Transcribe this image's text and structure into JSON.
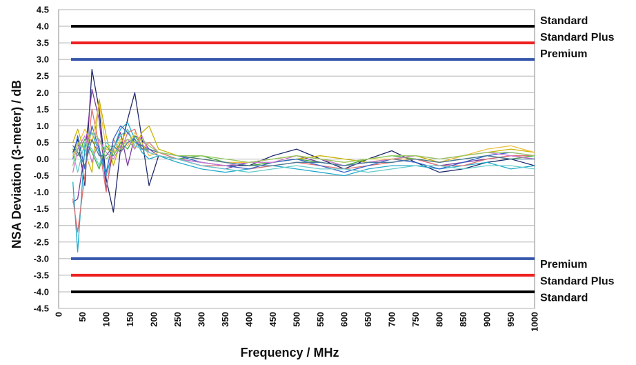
{
  "chart_data": {
    "type": "line",
    "title": "",
    "xlabel": "Frequency / MHz",
    "ylabel": "NSA Deviation (3-meter) / dB",
    "xlim": [
      0,
      1000
    ],
    "ylim": [
      -4.5,
      4.5
    ],
    "x_ticks": [
      "0",
      "50",
      "100",
      "150",
      "200",
      "250",
      "300",
      "350",
      "400",
      "450",
      "500",
      "550",
      "600",
      "650",
      "700",
      "750",
      "800",
      "850",
      "900",
      "950",
      "1000"
    ],
    "y_ticks": [
      "4.5",
      "4.0",
      "3.5",
      "3.0",
      "2.5",
      "2.0",
      "1.5",
      "1.0",
      "0.5",
      "0.0",
      "-0.5",
      "-1.0",
      "-1.5",
      "-2.0",
      "-2.5",
      "-3.0",
      "-3.5",
      "-4.0",
      "-4.5"
    ],
    "grid": true,
    "limits": [
      {
        "name": "Standard",
        "value": 4.0,
        "color": "#000000"
      },
      {
        "name": "Standard Plus",
        "value": 3.5,
        "color": "#ee2222"
      },
      {
        "name": "Premium",
        "value": 3.0,
        "color": "#3355aa"
      },
      {
        "name": "Premium",
        "value": -3.0,
        "color": "#3355aa"
      },
      {
        "name": "Standard Plus",
        "value": -3.5,
        "color": "#ee2222"
      },
      {
        "name": "Standard",
        "value": -4.0,
        "color": "#000000"
      }
    ],
    "series": [
      {
        "color": "#1f2a6b",
        "x": [
          30,
          40,
          55,
          70,
          85,
          100,
          115,
          130,
          145,
          160,
          175,
          190,
          210,
          250,
          300,
          350,
          400,
          450,
          500,
          550,
          600,
          650,
          700,
          750,
          800,
          850,
          900,
          950,
          1000
        ],
        "y": [
          0.2,
          0.6,
          -0.8,
          2.7,
          1.5,
          -0.6,
          -1.6,
          0.3,
          1.2,
          2.0,
          0.6,
          -0.8,
          0.1,
          0.0,
          -0.1,
          -0.2,
          -0.2,
          0.1,
          0.3,
          0.0,
          -0.3,
          0.0,
          0.25,
          -0.1,
          -0.4,
          -0.3,
          -0.1,
          0.0,
          -0.2
        ]
      },
      {
        "color": "#7a3aa0",
        "x": [
          30,
          40,
          55,
          70,
          85,
          100,
          115,
          130,
          145,
          160,
          175,
          190,
          210,
          250,
          300,
          350,
          400,
          450,
          500,
          550,
          600,
          650,
          700,
          750,
          800,
          850,
          900,
          950,
          1000
        ],
        "y": [
          -1.3,
          -1.2,
          0.2,
          2.1,
          1.2,
          -0.9,
          0.3,
          0.8,
          -0.2,
          0.7,
          0.6,
          0.3,
          0.1,
          0.0,
          -0.2,
          -0.3,
          -0.1,
          0.0,
          0.1,
          -0.1,
          -0.2,
          -0.1,
          0.0,
          0.0,
          -0.2,
          -0.1,
          0.0,
          0.1,
          0.0
        ]
      },
      {
        "color": "#c8b400",
        "x": [
          30,
          40,
          55,
          70,
          85,
          100,
          115,
          130,
          145,
          160,
          175,
          190,
          210,
          250,
          300,
          350,
          400,
          450,
          500,
          550,
          600,
          650,
          700,
          750,
          800,
          850,
          900,
          950,
          1000
        ],
        "y": [
          0.5,
          0.9,
          0.2,
          -0.4,
          1.8,
          0.7,
          -0.2,
          0.5,
          0.9,
          0.3,
          0.8,
          1.0,
          0.3,
          0.1,
          0.0,
          -0.1,
          -0.2,
          -0.1,
          0.0,
          0.1,
          0.0,
          -0.1,
          0.0,
          0.1,
          -0.1,
          0.1,
          0.2,
          0.3,
          0.2
        ]
      },
      {
        "color": "#22aacc",
        "x": [
          30,
          40,
          55,
          70,
          85,
          100,
          115,
          130,
          145,
          160,
          175,
          190,
          210,
          250,
          300,
          350,
          400,
          450,
          500,
          550,
          600,
          650,
          700,
          750,
          800,
          850,
          900,
          950,
          1000
        ],
        "y": [
          -0.7,
          -2.8,
          0.4,
          0.8,
          0.2,
          -0.5,
          0.3,
          0.9,
          1.1,
          0.6,
          0.2,
          0.0,
          0.1,
          -0.1,
          -0.3,
          -0.4,
          -0.3,
          -0.2,
          -0.3,
          -0.4,
          -0.5,
          -0.3,
          -0.2,
          -0.2,
          -0.3,
          -0.2,
          -0.1,
          -0.3,
          -0.2
        ]
      },
      {
        "color": "#e07070",
        "x": [
          30,
          40,
          55,
          70,
          85,
          100,
          115,
          130,
          145,
          160,
          175,
          190,
          210,
          250,
          300,
          350,
          400,
          450,
          500,
          550,
          600,
          650,
          700,
          750,
          800,
          850,
          900,
          950,
          1000
        ],
        "y": [
          -1.2,
          -2.2,
          -0.5,
          1.5,
          0.4,
          -1.0,
          0.6,
          0.2,
          0.8,
          0.9,
          0.3,
          0.5,
          0.2,
          0.0,
          -0.2,
          -0.2,
          -0.3,
          -0.2,
          -0.1,
          -0.2,
          -0.3,
          -0.2,
          -0.1,
          0.0,
          -0.2,
          -0.2,
          0.0,
          0.1,
          0.1
        ]
      },
      {
        "color": "#44aa44",
        "x": [
          30,
          40,
          55,
          70,
          85,
          100,
          115,
          130,
          145,
          160,
          175,
          190,
          210,
          250,
          300,
          350,
          400,
          450,
          500,
          550,
          600,
          650,
          700,
          750,
          800,
          850,
          900,
          950,
          1000
        ],
        "y": [
          0.3,
          0.1,
          0.6,
          0.2,
          -0.3,
          0.4,
          0.1,
          0.5,
          0.3,
          0.7,
          0.4,
          0.2,
          0.1,
          0.0,
          0.1,
          -0.1,
          -0.2,
          -0.1,
          0.0,
          -0.1,
          -0.2,
          0.0,
          0.1,
          0.0,
          -0.1,
          0.0,
          0.1,
          0.0,
          0.1
        ]
      },
      {
        "color": "#3366cc",
        "x": [
          30,
          40,
          55,
          70,
          85,
          100,
          115,
          130,
          145,
          160,
          175,
          190,
          210,
          250,
          300,
          350,
          400,
          450,
          500,
          550,
          600,
          650,
          700,
          750,
          800,
          850,
          900,
          950,
          1000
        ],
        "y": [
          0.0,
          0.7,
          -0.3,
          1.0,
          0.3,
          -0.4,
          0.6,
          1.0,
          0.8,
          0.5,
          0.4,
          0.3,
          0.2,
          0.1,
          -0.1,
          -0.2,
          -0.3,
          -0.1,
          0.0,
          -0.2,
          -0.4,
          -0.2,
          0.0,
          -0.1,
          -0.3,
          -0.1,
          0.1,
          0.2,
          0.1
        ]
      },
      {
        "color": "#d07bd0",
        "x": [
          30,
          40,
          55,
          70,
          85,
          100,
          115,
          130,
          145,
          160,
          175,
          190,
          210,
          250,
          300,
          350,
          400,
          450,
          500,
          550,
          600,
          650,
          700,
          750,
          800,
          850,
          900,
          950,
          1000
        ],
        "y": [
          -0.4,
          0.3,
          0.7,
          -0.1,
          0.6,
          0.2,
          0.0,
          0.4,
          0.6,
          0.3,
          0.7,
          0.2,
          0.1,
          0.0,
          -0.1,
          -0.2,
          -0.1,
          -0.1,
          0.1,
          0.0,
          -0.2,
          -0.1,
          0.0,
          0.1,
          0.0,
          0.1,
          0.2,
          0.1,
          0.0
        ]
      },
      {
        "color": "#f0c040",
        "x": [
          30,
          40,
          55,
          70,
          85,
          100,
          115,
          130,
          145,
          160,
          175,
          190,
          210,
          250,
          300,
          350,
          400,
          450,
          500,
          550,
          600,
          650,
          700,
          750,
          800,
          850,
          900,
          950,
          1000
        ],
        "y": [
          0.1,
          0.4,
          0.9,
          0.5,
          1.7,
          0.3,
          0.2,
          0.6,
          0.4,
          0.8,
          0.5,
          0.1,
          0.2,
          0.1,
          0.0,
          -0.1,
          -0.1,
          0.0,
          0.1,
          0.0,
          -0.1,
          0.0,
          0.0,
          0.0,
          -0.1,
          0.1,
          0.3,
          0.4,
          0.2
        ]
      },
      {
        "color": "#66cccc",
        "x": [
          30,
          40,
          55,
          70,
          85,
          100,
          115,
          130,
          145,
          160,
          175,
          190,
          210,
          250,
          300,
          350,
          400,
          450,
          500,
          550,
          600,
          650,
          700,
          750,
          800,
          850,
          900,
          950,
          1000
        ],
        "y": [
          0.2,
          -0.4,
          0.5,
          0.3,
          -0.2,
          0.5,
          0.3,
          0.7,
          0.9,
          0.4,
          0.3,
          0.2,
          0.1,
          0.0,
          -0.2,
          -0.3,
          -0.4,
          -0.3,
          -0.2,
          -0.3,
          -0.3,
          -0.4,
          -0.3,
          -0.2,
          -0.2,
          -0.3,
          -0.2,
          -0.2,
          -0.3
        ]
      },
      {
        "color": "#4a7a9a",
        "x": [
          30,
          40,
          55,
          70,
          85,
          100,
          115,
          130,
          145,
          160,
          175,
          190,
          210,
          250,
          300,
          350,
          400,
          450,
          500,
          550,
          600,
          650,
          700,
          750,
          800,
          850,
          900,
          950,
          1000
        ],
        "y": [
          0.4,
          0.2,
          -0.2,
          0.6,
          0.1,
          0.1,
          0.4,
          0.2,
          0.5,
          0.6,
          0.3,
          0.3,
          0.2,
          0.1,
          0.0,
          -0.1,
          -0.2,
          -0.2,
          -0.1,
          -0.1,
          -0.2,
          -0.1,
          -0.1,
          0.0,
          -0.1,
          0.0,
          0.1,
          0.0,
          0.0
        ]
      },
      {
        "color": "#99cc66",
        "x": [
          30,
          40,
          55,
          70,
          85,
          100,
          115,
          130,
          145,
          160,
          175,
          190,
          210,
          250,
          300,
          350,
          400,
          450,
          500,
          550,
          600,
          650,
          700,
          750,
          800,
          850,
          900,
          950,
          1000
        ],
        "y": [
          -0.2,
          0.5,
          0.3,
          0.8,
          0.6,
          0.0,
          0.2,
          0.3,
          0.6,
          0.5,
          0.6,
          0.4,
          0.2,
          0.1,
          0.1,
          0.0,
          -0.1,
          0.0,
          0.1,
          0.0,
          -0.1,
          0.0,
          0.1,
          0.1,
          0.0,
          0.1,
          0.2,
          0.2,
          0.1
        ]
      }
    ]
  }
}
